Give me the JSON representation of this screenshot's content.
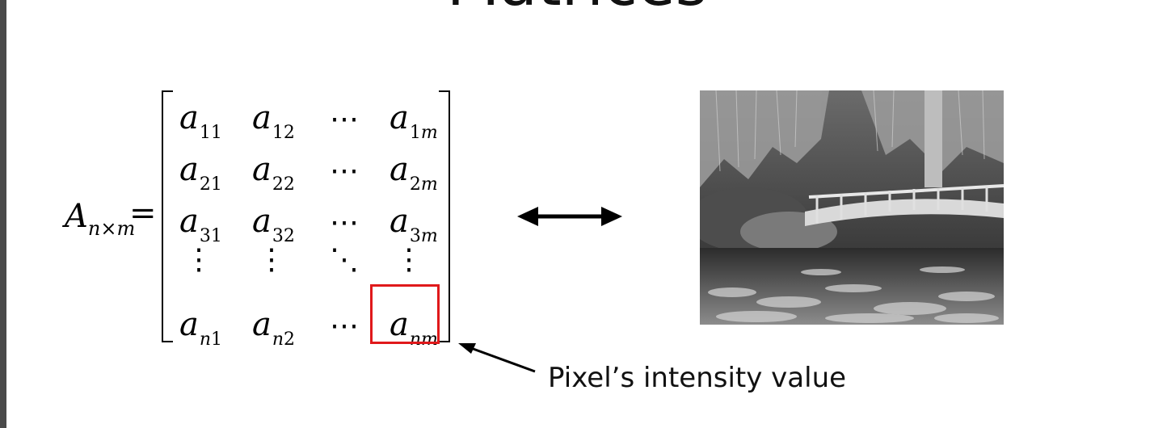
{
  "slide": {
    "title": "Matrices",
    "caption": "Pixel’s intensity value"
  },
  "matrix": {
    "lhs_symbol": "A",
    "lhs_subscript": "n×m",
    "equals": "=",
    "rows": [
      [
        {
          "b": "a",
          "s": "11"
        },
        {
          "b": "a",
          "s": "12"
        },
        {
          "b": "⋯",
          "s": ""
        },
        {
          "b": "a",
          "s": "1m"
        }
      ],
      [
        {
          "b": "a",
          "s": "21"
        },
        {
          "b": "a",
          "s": "22"
        },
        {
          "b": "⋯",
          "s": ""
        },
        {
          "b": "a",
          "s": "2m"
        }
      ],
      [
        {
          "b": "a",
          "s": "31"
        },
        {
          "b": "a",
          "s": "32"
        },
        {
          "b": "⋯",
          "s": ""
        },
        {
          "b": "a",
          "s": "3m"
        }
      ],
      [
        {
          "b": "⋮",
          "s": ""
        },
        {
          "b": "⋮",
          "s": ""
        },
        {
          "b": "⋱",
          "s": ""
        },
        {
          "b": "⋮",
          "s": ""
        }
      ],
      [
        {
          "b": "a",
          "s": "n1"
        },
        {
          "b": "a",
          "s": "n2"
        },
        {
          "b": "⋯",
          "s": ""
        },
        {
          "b": "a",
          "s": "nm"
        }
      ]
    ],
    "highlight_color": "#e0191b"
  },
  "image": {
    "icon": "grayscale-photo-bridge-pond"
  }
}
